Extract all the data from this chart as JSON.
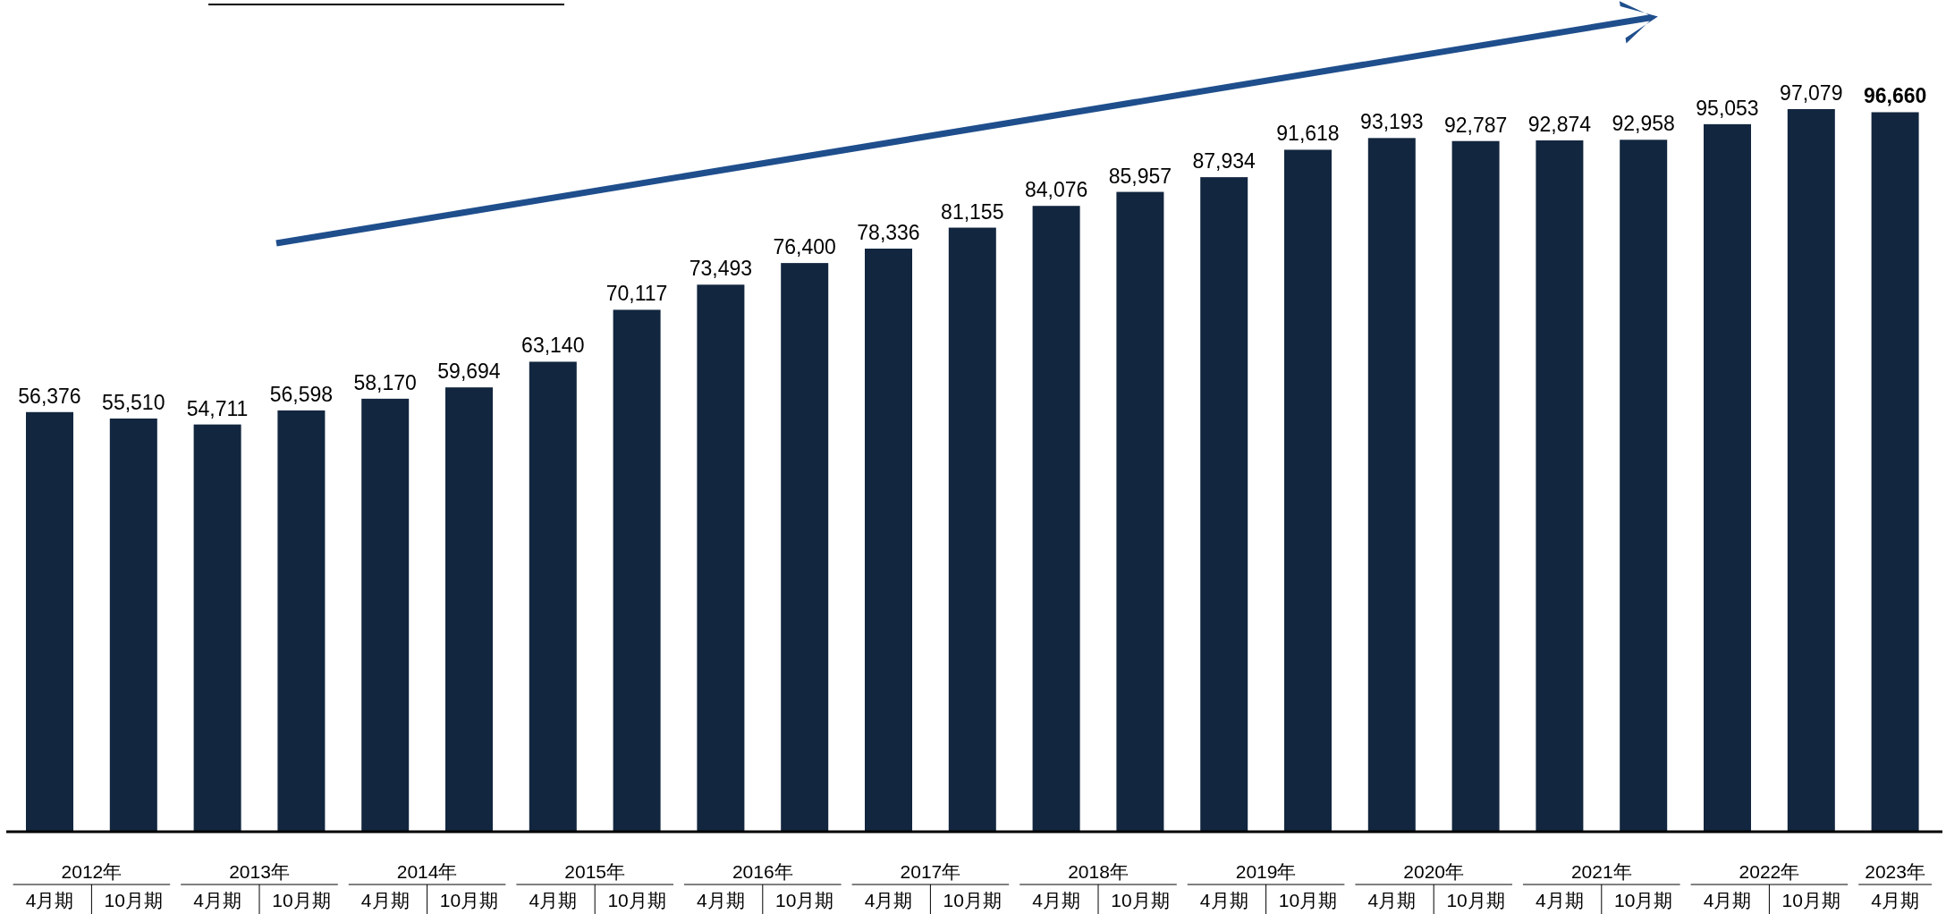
{
  "chart_data": {
    "type": "bar",
    "categories": [
      "4月期",
      "10月期",
      "4月期",
      "10月期",
      "4月期",
      "10月期",
      "4月期",
      "10月期",
      "4月期",
      "10月期",
      "4月期",
      "10月期",
      "4月期",
      "10月期",
      "4月期",
      "10月期",
      "4月期",
      "10月期",
      "4月期",
      "10月期",
      "4月期",
      "10月期",
      "4月期"
    ],
    "values": [
      56376,
      55510,
      54711,
      56598,
      58170,
      59694,
      63140,
      70117,
      73493,
      76400,
      78336,
      81155,
      84076,
      85957,
      87934,
      91618,
      93193,
      92787,
      92874,
      92958,
      95053,
      97079,
      96660
    ],
    "color": "#12263f",
    "value_labels": [
      "56,376",
      "55,510",
      "54,711",
      "56,598",
      "58,170",
      "59,694",
      "63,140",
      "70,117",
      "73,493",
      "76,400",
      "78,336",
      "81,155",
      "84,076",
      "85,957",
      "87,934",
      "91,618",
      "93,193",
      "92,787",
      "92,874",
      "92,958",
      "95,053",
      "97,079",
      "96,660"
    ],
    "annotations": [
      "2012年",
      "2013年",
      "2014年",
      "2015年",
      "2016年",
      "2017年",
      "2018年",
      "2019年",
      "2020年",
      "2021年",
      "2022年",
      "2023年"
    ]
  }
}
